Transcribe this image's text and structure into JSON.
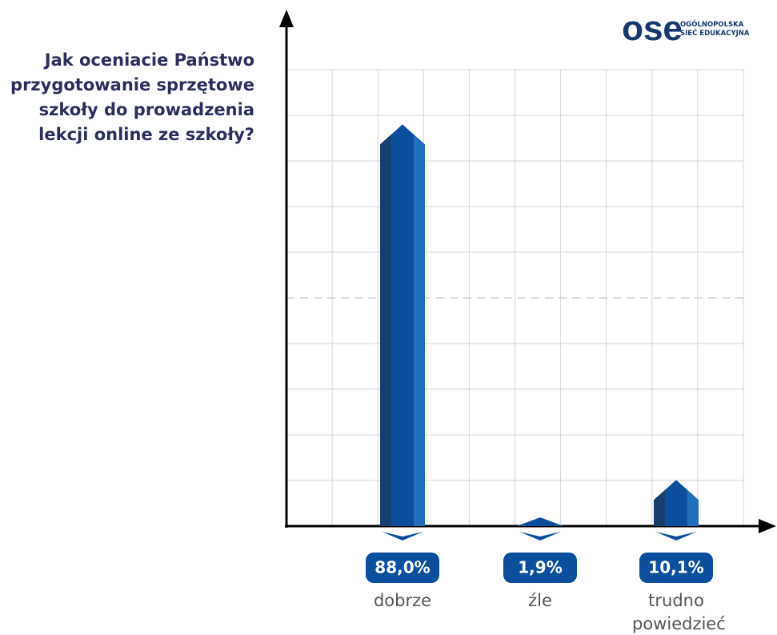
{
  "logo": {
    "mark": "ose",
    "lines": [
      "OGÓLNOPOLSKA",
      "SIEĆ EDUKACYJNA"
    ]
  },
  "chart_data": {
    "type": "bar",
    "title": "Jak oceniacie Państwo przygotowanie sprzętowe szkoły do prowadzenia lekcji online ze szkoły?",
    "categories": [
      "dobrze",
      "źle",
      "trudno powiedzieć"
    ],
    "values": [
      88.0,
      1.9,
      10.1
    ],
    "value_labels": [
      "88,0%",
      "1,9%",
      "10,1%"
    ],
    "color": "#0b4f9c",
    "ylim": [
      0,
      100
    ],
    "yticks": [
      0,
      10,
      20,
      30,
      40,
      50,
      60,
      70,
      80,
      90,
      100
    ],
    "reference_line": 50,
    "grid": true
  }
}
